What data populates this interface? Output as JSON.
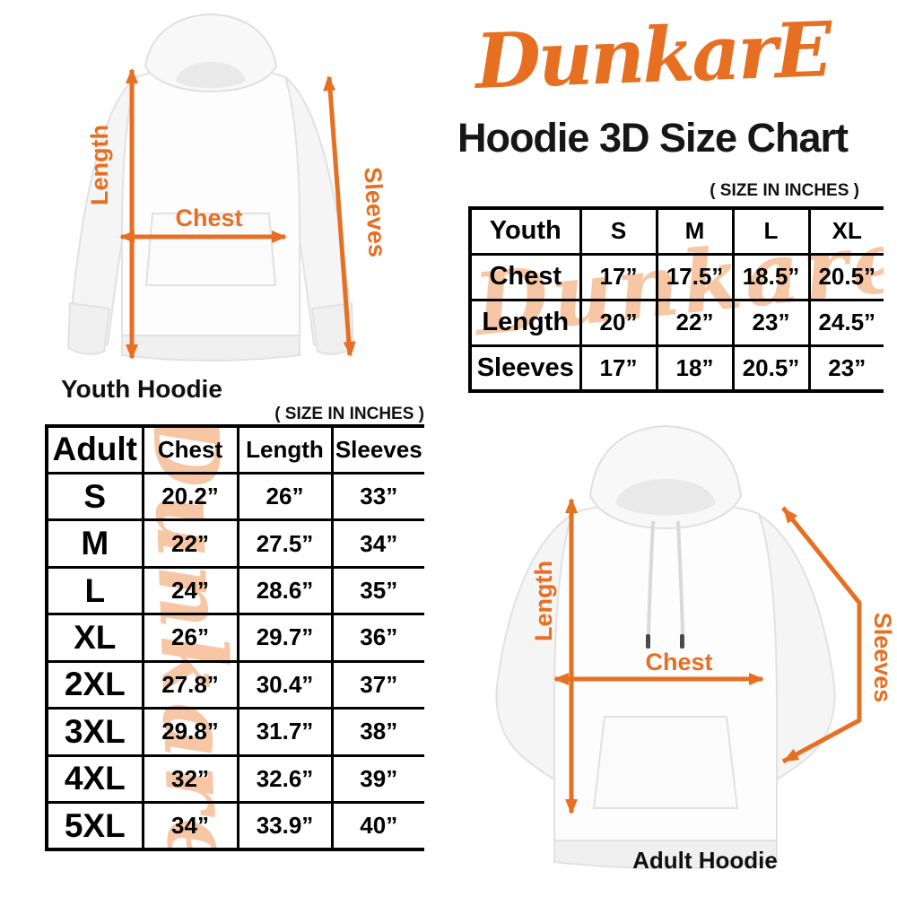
{
  "brand": {
    "logo_text": "DunkarE",
    "color": "#E66F22"
  },
  "title": "Hoodie 3D Size Chart",
  "size_note": "( SIZE IN INCHES )",
  "watermark_text": "Dunkare",
  "youth_figure": {
    "caption": "Youth Hoodie",
    "length_label": "Length",
    "chest_label": "Chest",
    "sleeves_label": "Sleeves"
  },
  "adult_figure": {
    "caption": "Adult Hoodie",
    "length_label": "Length",
    "chest_label": "Chest",
    "sleeves_label": "Sleeves"
  },
  "youth_table": {
    "header": [
      "Youth",
      "S",
      "M",
      "L",
      "XL"
    ],
    "rows": [
      {
        "label": "Chest",
        "values": [
          "17”",
          "17.5”",
          "18.5”",
          "20.5”"
        ]
      },
      {
        "label": "Length",
        "values": [
          "20”",
          "22”",
          "23”",
          "24.5”"
        ]
      },
      {
        "label": "Sleeves",
        "values": [
          "17”",
          "18”",
          "20.5”",
          "23”"
        ]
      }
    ]
  },
  "adult_table": {
    "header": [
      "Adult",
      "Chest",
      "Length",
      "Sleeves"
    ],
    "rows": [
      {
        "label": "S",
        "values": [
          "20.2”",
          "26”",
          "33”"
        ]
      },
      {
        "label": "M",
        "values": [
          "22”",
          "27.5”",
          "34”"
        ]
      },
      {
        "label": "L",
        "values": [
          "24”",
          "28.6”",
          "35”"
        ]
      },
      {
        "label": "XL",
        "values": [
          "26”",
          "29.7”",
          "36”"
        ]
      },
      {
        "label": "2XL",
        "values": [
          "27.8”",
          "30.4”",
          "37”"
        ]
      },
      {
        "label": "3XL",
        "values": [
          "29.8”",
          "31.7”",
          "38”"
        ]
      },
      {
        "label": "4XL",
        "values": [
          "32”",
          "32.6”",
          "39”"
        ]
      },
      {
        "label": "5XL",
        "values": [
          "34”",
          "33.9”",
          "40”"
        ]
      }
    ]
  }
}
